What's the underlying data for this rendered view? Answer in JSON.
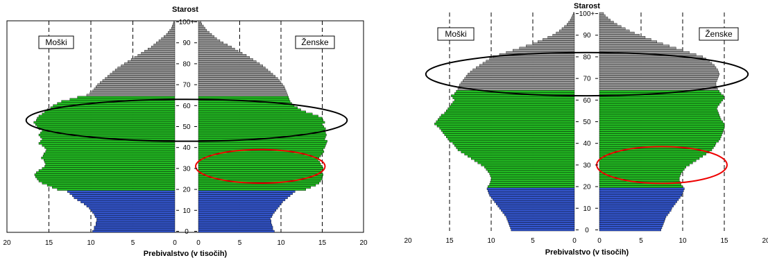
{
  "colors": {
    "young": "#3355cc",
    "working": "#22bb22",
    "old": "#999999",
    "bar_stroke": "#000000",
    "ellipse_black": "#000000",
    "ellipse_red": "#ee0000"
  },
  "chart_data": [
    {
      "type": "bar",
      "orientation": "horizontal",
      "subtype": "population-pyramid",
      "title": "Starost",
      "xlabel": "Prebivalstvo (v tisočih)",
      "ylabel": "",
      "xlim": [
        0,
        20
      ],
      "xticks": [
        "20",
        "15",
        "10",
        "5",
        "0",
        "0",
        "5",
        "10",
        "15",
        "20"
      ],
      "yticks": [
        "0",
        "10",
        "20",
        "30",
        "40",
        "50",
        "60",
        "70",
        "80",
        "90",
        "100+"
      ],
      "ylim": [
        0,
        100
      ],
      "grid": "dashed vertical at 5, 10, 15",
      "legend": "none",
      "annotations": [
        "Moški",
        "Ženske"
      ],
      "age_groups": [
        {
          "from": 0,
          "to": 19,
          "color": "#3355cc"
        },
        {
          "from": 20,
          "to": 64,
          "color": "#22bb22"
        },
        {
          "from": 65,
          "to": 100,
          "color": "#999999"
        }
      ],
      "highlights": [
        {
          "side": "both",
          "age_center": 53,
          "age_span": 20,
          "color": "#000000"
        },
        {
          "side": "female",
          "age_center": 31,
          "age_span": 16,
          "color": "#ee0000"
        }
      ],
      "ages": [
        0,
        1,
        2,
        3,
        4,
        5,
        6,
        7,
        8,
        9,
        10,
        11,
        12,
        13,
        14,
        15,
        16,
        17,
        18,
        19,
        20,
        21,
        22,
        23,
        24,
        25,
        26,
        27,
        28,
        29,
        30,
        31,
        32,
        33,
        34,
        35,
        36,
        37,
        38,
        39,
        40,
        41,
        42,
        43,
        44,
        45,
        46,
        47,
        48,
        49,
        50,
        51,
        52,
        53,
        54,
        55,
        56,
        57,
        58,
        59,
        60,
        61,
        62,
        63,
        64,
        65,
        66,
        67,
        68,
        69,
        70,
        71,
        72,
        73,
        74,
        75,
        76,
        77,
        78,
        79,
        80,
        81,
        82,
        83,
        84,
        85,
        86,
        87,
        88,
        89,
        90,
        91,
        92,
        93,
        94,
        95,
        96,
        97,
        98,
        99,
        100
      ],
      "series": [
        {
          "name": "Moški",
          "values": [
            9.8,
            9.6,
            9.6,
            9.4,
            9.4,
            9.3,
            9.3,
            9.5,
            9.6,
            9.8,
            10.0,
            10.2,
            10.5,
            10.8,
            11.2,
            11.6,
            12.0,
            12.2,
            12.5,
            12.8,
            14.0,
            14.6,
            15.2,
            15.8,
            16.2,
            16.4,
            16.6,
            16.7,
            16.5,
            16.2,
            15.8,
            15.5,
            15.4,
            15.5,
            15.6,
            15.9,
            15.7,
            15.6,
            15.4,
            15.3,
            15.5,
            15.8,
            16.2,
            16.0,
            15.8,
            16.0,
            16.2,
            16.0,
            15.8,
            16.2,
            16.4,
            16.6,
            16.8,
            16.5,
            16.4,
            16.2,
            15.8,
            15.5,
            15.2,
            14.8,
            14.5,
            14.0,
            13.5,
            12.5,
            11.6,
            10.5,
            10.1,
            9.8,
            9.6,
            9.4,
            9.2,
            8.9,
            8.6,
            8.3,
            8.0,
            7.7,
            7.4,
            7.1,
            6.8,
            6.4,
            6.0,
            5.6,
            5.2,
            4.8,
            4.4,
            4.0,
            3.6,
            3.2,
            2.8,
            2.5,
            2.2,
            1.9,
            1.6,
            1.3,
            1.0,
            0.8,
            0.6,
            0.4,
            0.3,
            0.2,
            0.15
          ]
        },
        {
          "name": "Ženske",
          "values": [
            9.2,
            9.0,
            9.0,
            8.9,
            8.8,
            8.8,
            8.7,
            8.9,
            9.0,
            9.2,
            9.4,
            9.6,
            9.8,
            10.0,
            10.2,
            10.5,
            10.8,
            11.1,
            11.4,
            11.7,
            13.0,
            13.6,
            14.2,
            14.6,
            14.8,
            15.0,
            15.0,
            15.1,
            15.0,
            14.9,
            15.1,
            15.0,
            14.8,
            14.7,
            14.5,
            14.6,
            14.8,
            15.0,
            15.2,
            15.1,
            15.3,
            15.4,
            15.5,
            15.6,
            15.3,
            15.4,
            15.5,
            15.4,
            15.3,
            15.4,
            15.2,
            15.0,
            15.3,
            15.1,
            15.0,
            14.5,
            13.8,
            13.0,
            12.4,
            12.0,
            11.6,
            11.3,
            11.1,
            11.0,
            10.9,
            10.8,
            10.7,
            10.6,
            10.5,
            10.4,
            10.2,
            10.0,
            9.8,
            9.6,
            9.3,
            9.0,
            8.7,
            8.4,
            8.1,
            7.8,
            7.4,
            7.0,
            6.6,
            6.2,
            5.8,
            5.3,
            4.8,
            4.4,
            4.0,
            3.5,
            3.0,
            2.6,
            2.2,
            1.9,
            1.6,
            1.3,
            1.0,
            0.8,
            0.6,
            0.4,
            0.3
          ]
        }
      ]
    },
    {
      "type": "bar",
      "orientation": "horizontal",
      "subtype": "population-pyramid",
      "title": "Starost",
      "xlabel": "Prebivalstvo (v tisočih)",
      "ylabel": "",
      "xlim": [
        0,
        20
      ],
      "xticks": [
        "20",
        "15",
        "10",
        "5",
        "0",
        "0",
        "5",
        "10",
        "15",
        "20"
      ],
      "yticks": [
        "0",
        "10",
        "20",
        "30",
        "40",
        "50",
        "60",
        "70",
        "80",
        "90",
        "100+"
      ],
      "ylim": [
        0,
        100
      ],
      "grid": "dashed vertical at 5, 10, 15",
      "legend": "none",
      "annotations": [
        "Moški",
        "Ženske"
      ],
      "age_groups": [
        {
          "from": 0,
          "to": 19,
          "color": "#3355cc"
        },
        {
          "from": 20,
          "to": 64,
          "color": "#22bb22"
        },
        {
          "from": 65,
          "to": 100,
          "color": "#999999"
        }
      ],
      "highlights": [
        {
          "side": "both",
          "age_center": 72,
          "age_span": 20,
          "color": "#000000"
        },
        {
          "side": "female",
          "age_center": 30,
          "age_span": 17,
          "color": "#ee0000"
        }
      ],
      "ages": [
        0,
        1,
        2,
        3,
        4,
        5,
        6,
        7,
        8,
        9,
        10,
        11,
        12,
        13,
        14,
        15,
        16,
        17,
        18,
        19,
        20,
        21,
        22,
        23,
        24,
        25,
        26,
        27,
        28,
        29,
        30,
        31,
        32,
        33,
        34,
        35,
        36,
        37,
        38,
        39,
        40,
        41,
        42,
        43,
        44,
        45,
        46,
        47,
        48,
        49,
        50,
        51,
        52,
        53,
        54,
        55,
        56,
        57,
        58,
        59,
        60,
        61,
        62,
        63,
        64,
        65,
        66,
        67,
        68,
        69,
        70,
        71,
        72,
        73,
        74,
        75,
        76,
        77,
        78,
        79,
        80,
        81,
        82,
        83,
        84,
        85,
        86,
        87,
        88,
        89,
        90,
        91,
        92,
        93,
        94,
        95,
        96,
        97,
        98,
        99,
        100
      ],
      "series": [
        {
          "name": "Moški",
          "values": [
            7.6,
            7.7,
            7.8,
            7.9,
            8.0,
            8.1,
            8.2,
            8.4,
            8.6,
            8.8,
            9.0,
            9.2,
            9.4,
            9.6,
            9.8,
            10.0,
            10.2,
            10.3,
            10.4,
            10.5,
            10.4,
            10.2,
            10.1,
            10.0,
            10.0,
            10.1,
            10.2,
            10.4,
            10.6,
            10.8,
            11.2,
            11.6,
            12.0,
            12.4,
            12.8,
            13.2,
            13.6,
            14.0,
            14.2,
            14.4,
            14.6,
            15.0,
            15.2,
            15.4,
            15.6,
            15.8,
            16.0,
            16.2,
            16.5,
            16.8,
            16.6,
            16.4,
            16.2,
            16.0,
            15.6,
            15.4,
            15.2,
            15.0,
            14.8,
            14.6,
            14.4,
            14.6,
            14.8,
            14.4,
            14.2,
            14.0,
            13.9,
            13.8,
            13.6,
            13.4,
            13.2,
            13.0,
            12.8,
            12.5,
            12.2,
            11.8,
            11.4,
            11.0,
            10.6,
            10.2,
            9.8,
            9.0,
            8.2,
            7.4,
            6.6,
            5.8,
            5.0,
            4.4,
            3.8,
            3.2,
            2.6,
            2.2,
            1.8,
            1.5,
            1.2,
            0.9,
            0.7,
            0.5,
            0.35,
            0.25,
            0.15
          ]
        },
        {
          "name": "Ženske",
          "values": [
            7.4,
            7.5,
            7.6,
            7.7,
            7.8,
            7.9,
            8.0,
            8.2,
            8.4,
            8.6,
            8.7,
            8.9,
            9.1,
            9.3,
            9.5,
            9.7,
            9.9,
            10.0,
            10.1,
            10.2,
            10.0,
            9.8,
            9.7,
            9.6,
            9.6,
            9.7,
            9.8,
            10.0,
            10.2,
            10.4,
            10.8,
            11.2,
            11.6,
            12.0,
            12.4,
            12.8,
            13.2,
            13.5,
            13.7,
            13.9,
            14.0,
            14.3,
            14.5,
            14.6,
            14.7,
            14.8,
            14.9,
            15.0,
            15.0,
            15.0,
            14.8,
            14.6,
            14.5,
            14.4,
            14.3,
            14.2,
            14.1,
            14.2,
            14.4,
            14.6,
            14.8,
            15.0,
            14.9,
            14.6,
            14.4,
            14.2,
            14.1,
            14.0,
            14.0,
            14.1,
            14.2,
            14.3,
            14.4,
            14.3,
            14.2,
            14.0,
            13.8,
            13.5,
            13.2,
            12.8,
            12.4,
            11.6,
            10.8,
            10.0,
            9.2,
            8.4,
            7.6,
            6.9,
            6.2,
            5.5,
            4.8,
            4.2,
            3.6,
            3.1,
            2.6,
            2.1,
            1.7,
            1.3,
            1.0,
            0.7,
            0.5
          ]
        }
      ]
    }
  ]
}
